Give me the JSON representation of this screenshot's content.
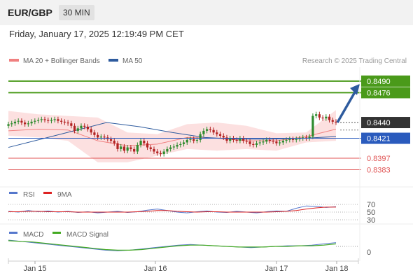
{
  "header": {
    "symbol": "EUR/GBP",
    "timeframe": "30 MIN",
    "datetime": "Friday, January 17, 2025 12:19:49 PM CET"
  },
  "main_legend": [
    {
      "label": "MA 20 + Bollinger Bands",
      "color": "#f08080"
    },
    {
      "label": "MA 50",
      "color": "#2e5b9e"
    }
  ],
  "source": "Research © 2025 Trading Central",
  "rsi_legend": [
    {
      "label": "RSI",
      "color": "#5577cc"
    },
    {
      "label": "9MA",
      "color": "#dd2222"
    }
  ],
  "macd_legend": [
    {
      "label": "MACD",
      "color": "#5577cc"
    },
    {
      "label": "MACD Signal",
      "color": "#44aa22"
    }
  ],
  "colors": {
    "up": "#2e8b2e",
    "down": "#b22222",
    "target": "#4a9a1a",
    "current": "#333333",
    "pivot": "#2a5bbd",
    "support": "#e05555",
    "arrow": "#2e5b9e"
  },
  "chart_data": [
    {
      "type": "candlestick",
      "x_axis": {
        "ticks": [
          "Jan 15",
          "Jan 16",
          "Jan 17",
          "Jan 18"
        ]
      },
      "ylim": [
        0.8375,
        0.85
      ],
      "levels": [
        {
          "value": 0.849,
          "label": "0.8490",
          "kind": "target"
        },
        {
          "value": 0.8476,
          "label": "0.8476",
          "kind": "target"
        },
        {
          "value": 0.844,
          "label": "0.8440",
          "kind": "current"
        },
        {
          "value": 0.8421,
          "label": "0.8421",
          "kind": "pivot"
        },
        {
          "value": 0.8397,
          "label": "0.8397",
          "kind": "support"
        },
        {
          "value": 0.8383,
          "label": "0.8383",
          "kind": "support"
        }
      ],
      "close_series": [
        0.8438,
        0.8439,
        0.8441,
        0.8442,
        0.844,
        0.8438,
        0.8439,
        0.8441,
        0.8442,
        0.8443,
        0.8444,
        0.8443,
        0.8442,
        0.8443,
        0.8444,
        0.8442,
        0.8441,
        0.844,
        0.8439,
        0.8436,
        0.843,
        0.8433,
        0.8436,
        0.8435,
        0.8432,
        0.8428,
        0.8425,
        0.8422,
        0.8423,
        0.8422,
        0.842,
        0.8418,
        0.8415,
        0.8408,
        0.8411,
        0.8406,
        0.841,
        0.8408,
        0.8405,
        0.8413,
        0.8418,
        0.8415,
        0.841,
        0.8408,
        0.8405,
        0.8403,
        0.8402,
        0.8405,
        0.8408,
        0.841,
        0.8411,
        0.8413,
        0.8414,
        0.8416,
        0.8419,
        0.842,
        0.8418,
        0.8419,
        0.8426,
        0.843,
        0.8432,
        0.8431,
        0.8428,
        0.8426,
        0.8424,
        0.8422,
        0.8418,
        0.8421,
        0.8419,
        0.8418,
        0.8421,
        0.8418,
        0.8417,
        0.8414,
        0.8413,
        0.8415,
        0.8416,
        0.8417,
        0.8419,
        0.8418,
        0.8417,
        0.8415,
        0.8416,
        0.8418,
        0.8419,
        0.842,
        0.8419,
        0.842,
        0.8421,
        0.8422,
        0.8421,
        0.8423,
        0.8448,
        0.845,
        0.8446,
        0.8445,
        0.8447,
        0.8443,
        0.8441,
        0.844
      ],
      "ma50": [
        0.841,
        0.842,
        0.843,
        0.844,
        0.8435,
        0.8428,
        0.8422,
        0.842,
        0.842,
        0.8421,
        0.8423
      ],
      "ma20": [
        0.843,
        0.8432,
        0.8431,
        0.8418,
        0.8412,
        0.8414,
        0.8422,
        0.8421,
        0.8418,
        0.8418,
        0.8423,
        0.8432
      ],
      "bb_upper": [
        0.8454,
        0.845,
        0.8448,
        0.8446,
        0.8428,
        0.8426,
        0.8438,
        0.844,
        0.8436,
        0.8427,
        0.8428,
        0.8455
      ],
      "bb_lower": [
        0.8424,
        0.8422,
        0.8418,
        0.8392,
        0.8392,
        0.84,
        0.8408,
        0.8406,
        0.8408,
        0.8406,
        0.8416,
        0.8418
      ]
    },
    {
      "type": "line",
      "name": "RSI",
      "levels": [
        {
          "value": 70,
          "label": "70"
        },
        {
          "value": 50,
          "label": "50"
        },
        {
          "value": 30,
          "label": "30"
        }
      ],
      "series": [
        {
          "name": "RSI",
          "values": [
            52,
            50,
            54,
            51,
            53,
            50,
            52,
            49,
            51,
            48,
            50,
            52,
            49,
            51,
            55,
            58,
            54,
            50,
            48,
            51,
            53,
            50,
            49,
            52,
            50,
            48,
            51,
            53,
            52,
            60,
            66,
            65,
            62,
            64
          ]
        },
        {
          "name": "9MA",
          "values": [
            51,
            51,
            52,
            52,
            51,
            51,
            51,
            50,
            50,
            50,
            50,
            50,
            50,
            51,
            52,
            54,
            54,
            52,
            51,
            50,
            51,
            51,
            50,
            50,
            50,
            50,
            50,
            51,
            52,
            54,
            58,
            61,
            63,
            63
          ]
        }
      ]
    },
    {
      "type": "line",
      "name": "MACD",
      "levels": [
        {
          "value": 0,
          "label": "0"
        }
      ],
      "series": [
        {
          "name": "MACD",
          "values": [
            0.001,
            0.0008,
            0.0006,
            0.0004,
            0.0002,
            0.0,
            -0.0002,
            -0.0004,
            -0.0006,
            -0.0007,
            -0.0006,
            -0.0004,
            -0.0002,
            0.0,
            0.0002,
            0.0003,
            0.0002,
            0.0001,
            0.0,
            -0.0001,
            -0.0002,
            -0.0001,
            0.0,
            0.0001,
            0.0001,
            0.0002,
            0.0004,
            0.0006
          ]
        },
        {
          "name": "MACD Signal",
          "values": [
            0.0009,
            0.0008,
            0.0007,
            0.0005,
            0.0003,
            0.0001,
            -0.0001,
            -0.0003,
            -0.0005,
            -0.0006,
            -0.0006,
            -0.0005,
            -0.0003,
            -0.0001,
            0.0001,
            0.0002,
            0.0002,
            0.0001,
            0.0,
            -0.0001,
            -0.0001,
            -0.0001,
            0.0,
            0.0,
            0.0001,
            0.0001,
            0.0002,
            0.0004
          ]
        }
      ]
    }
  ]
}
